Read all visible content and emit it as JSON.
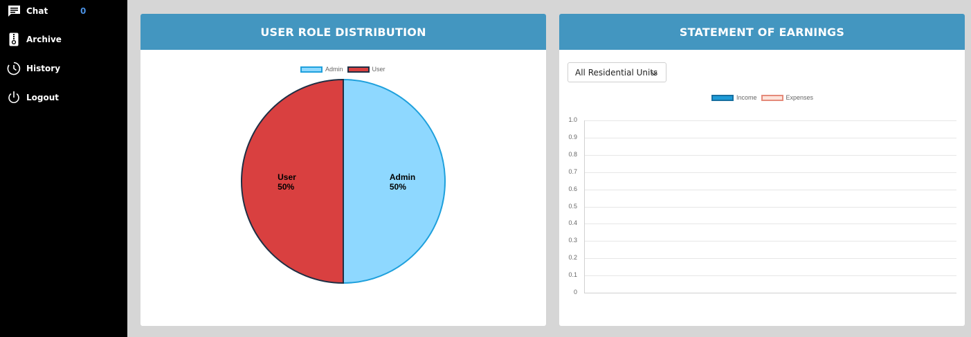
{
  "sidebar": {
    "items": [
      {
        "label": "Chat",
        "icon": "chat-icon",
        "badge": "0"
      },
      {
        "label": "Archive",
        "icon": "archive-icon"
      },
      {
        "label": "History",
        "icon": "history-icon"
      },
      {
        "label": "Logout",
        "icon": "logout-icon"
      }
    ]
  },
  "role_card": {
    "title": "USER ROLE DISTRIBUTION"
  },
  "earnings_card": {
    "title": "STATEMENT OF EARNINGS",
    "unit_select": "All Residential Units"
  },
  "colors": {
    "header": "#4396c0",
    "admin_fill": "#8ed8ff",
    "admin_border": "#1ea0dc",
    "user_fill": "#d94040",
    "user_border": "#1f2f44",
    "income_fill": "#1e9bd7",
    "expenses_fill": "#fde3da",
    "expenses_border": "#e58a7a",
    "badge": "#4a90e2"
  },
  "chart_data": [
    {
      "type": "pie",
      "categories": [
        "Admin",
        "User"
      ],
      "values": [
        50,
        50
      ],
      "slice_labels": [
        {
          "name": "Admin",
          "pct": "50%"
        },
        {
          "name": "User",
          "pct": "50%"
        }
      ],
      "legend": [
        "Admin",
        "User"
      ],
      "legend_position": "top"
    },
    {
      "type": "bar",
      "series": [
        {
          "name": "Income",
          "values": []
        },
        {
          "name": "Expenses",
          "values": []
        }
      ],
      "categories": [],
      "yticks": [
        "1.0",
        "0.9",
        "0.8",
        "0.7",
        "0.6",
        "0.5",
        "0.4",
        "0.3",
        "0.2",
        "0.1",
        "0"
      ],
      "ylim": [
        0,
        1
      ],
      "grid": true,
      "legend_position": "top"
    }
  ]
}
